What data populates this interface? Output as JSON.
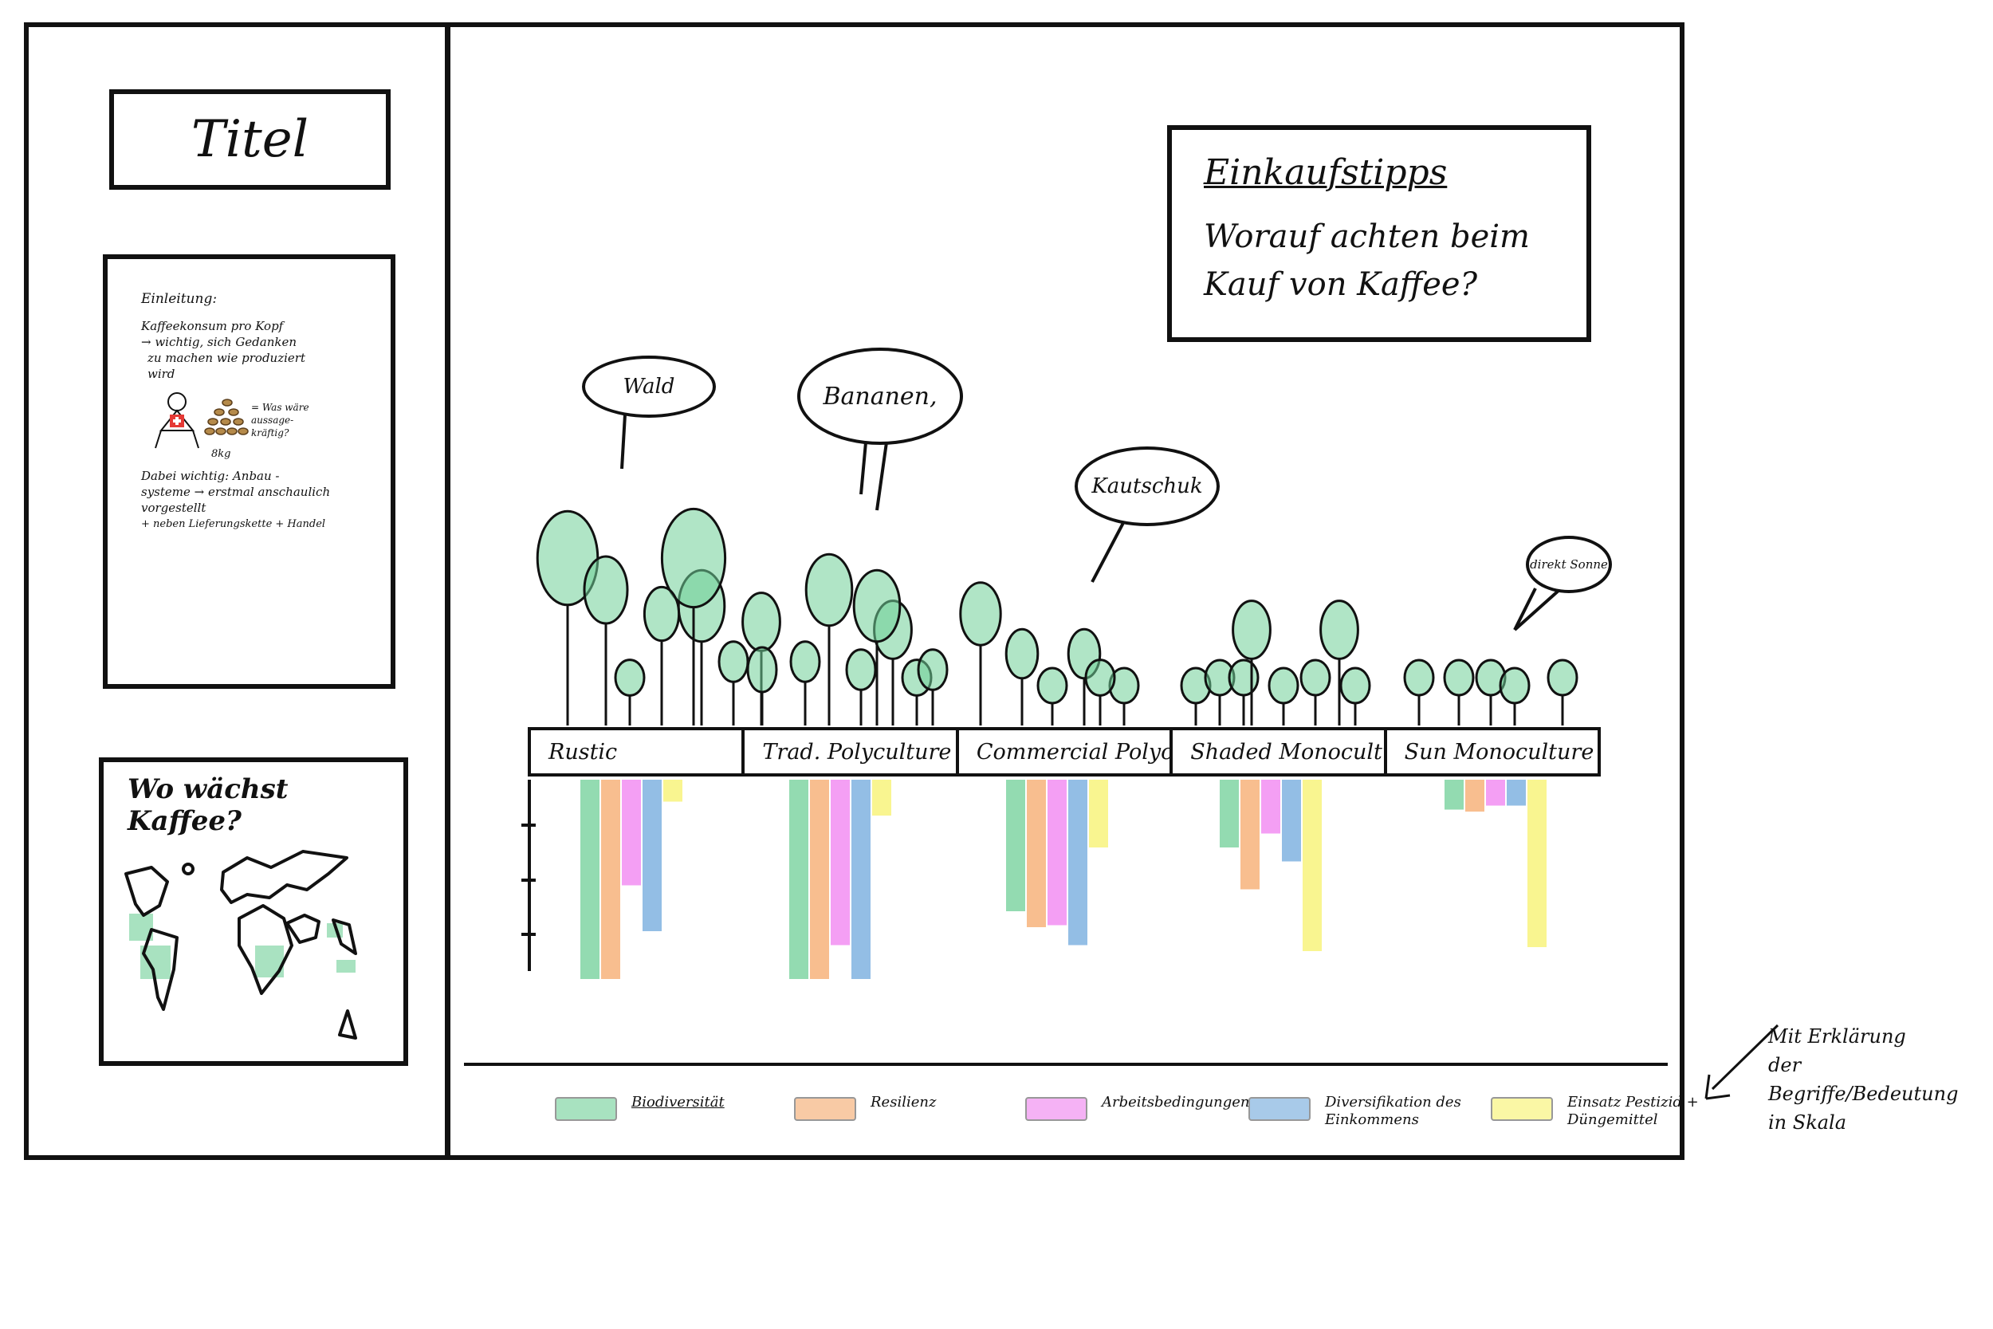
{
  "sidebar": {
    "title": "Titel",
    "intro": {
      "heading": "Einleitung:",
      "line1": "Kaffeekonsum pro Kopf",
      "line2": "→ wichtig, sich Gedanken",
      "line3": "zu machen wie produziert",
      "line4": "wird",
      "bean_label": "8kg",
      "question": "= Was wäre aussage-kräftig?",
      "line5": "Dabei wichtig: Anbau -",
      "line6": "systeme → erstmal anschaulich",
      "line7": "vorgestellt",
      "line8": "+ neben Lieferungskette + Handel"
    },
    "map": {
      "title": "Wo wächst Kaffee?"
    }
  },
  "tips": {
    "heading": "Einkaufstipps",
    "subtitle_line1": "Worauf achten beim",
    "subtitle_line2": "Kauf von Kaffee?"
  },
  "bubbles": {
    "wald": "Wald",
    "bananen": "Bananen,",
    "kautschuk": "Kautschuk",
    "sonne": "direkt Sonne"
  },
  "categories": [
    "Rustic",
    "Trad. Polyculture",
    "Commercial Polyculture",
    "Shaded Monoculture",
    "Sun Monoculture"
  ],
  "legend": [
    {
      "label": "Biodiversität",
      "color": "#6fcf97"
    },
    {
      "label": "Resilienz",
      "color": "#f5a86a"
    },
    {
      "label": "Arbeitsbedingungen",
      "color": "#f07ff0"
    },
    {
      "label": "Diversifikation des\nEinkommens",
      "color": "#6fa8dc"
    },
    {
      "label": "Einsatz Pestizid +\nDüngemittel",
      "color": "#f7f26b"
    }
  ],
  "note": "Mit Erklärung\nder Begriffe/Bedeutung\nin Skala",
  "colors": {
    "green": "#6fcf97",
    "orange": "#f5a86a",
    "pink": "#f07ff0",
    "blue": "#6fa8dc",
    "yellow": "#f7f26b",
    "ink": "#111111"
  },
  "chart_data": {
    "type": "bar",
    "categories": [
      "Rustic",
      "Trad. Polyculture",
      "Commercial Polyculture",
      "Shaded Monoculture",
      "Sun Monoculture"
    ],
    "series": [
      {
        "name": "Biodiversität",
        "values": [
          10,
          10,
          6.6,
          3.4,
          1.5
        ]
      },
      {
        "name": "Resilienz",
        "values": [
          10,
          10,
          7.4,
          5.5,
          1.6
        ]
      },
      {
        "name": "Arbeitsbedingungen",
        "values": [
          5.3,
          8.3,
          7.3,
          2.7,
          1.3
        ]
      },
      {
        "name": "Diversifikation des Einkommens",
        "values": [
          7.6,
          10,
          8.3,
          4.1,
          1.3
        ]
      },
      {
        "name": "Einsatz Pestizid + Düngemittel",
        "values": [
          1.1,
          1.8,
          3.4,
          8.6,
          8.4
        ]
      }
    ],
    "ylim": [
      0,
      10
    ]
  }
}
